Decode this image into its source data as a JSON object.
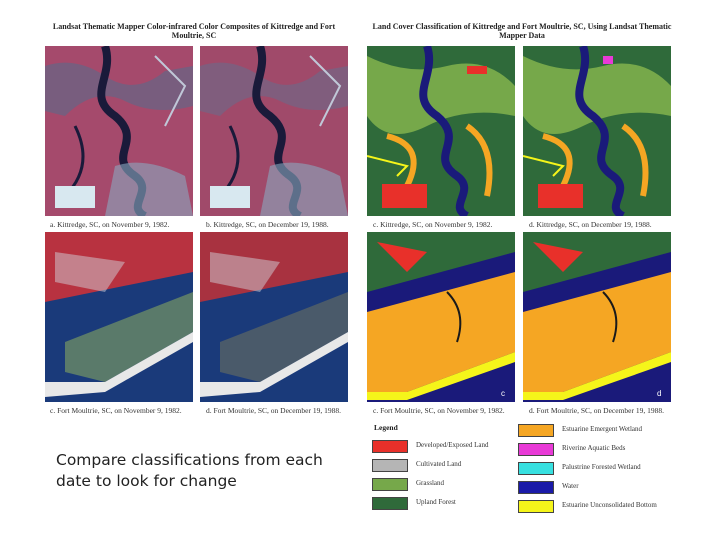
{
  "left_title": "Landsat Thematic Mapper Color-infrared Color Composites of Kittredge and Fort Moultrie, SC",
  "right_title": "Land Cover Classification of Kittredge and Fort Moultrie, SC, Using Landsat Thematic Mapper Data",
  "captions": {
    "a_top": "a. Kittredge, SC, on November 9, 1982.",
    "b_top": "b. Kittredge, SC, on December 19, 1988.",
    "c_top": "c. Kittredge, SC, on November 9, 1982.",
    "d_top": "d. Kittredge, SC, on December 19, 1988.",
    "c_bottom_left": "c. Fort Moultrie, SC, on November 9, 1982.",
    "d_bottom_left": "d. Fort Moultrie, SC, on December 19, 1988.",
    "c_bottom_right": "c. Fort Moultrie, SC, on November 9, 1982.",
    "d_bottom_right": "d. Fort Moultrie, SC, on December 19, 1988."
  },
  "panel_letters": {
    "c": "c",
    "d": "d"
  },
  "legend": {
    "title": "Legend",
    "left": [
      {
        "label": "Developed/Exposed Land",
        "color": "#e8302a"
      },
      {
        "label": "Cultivated Land",
        "color": "#b5b5b5"
      },
      {
        "label": "Grassland",
        "color": "#76a84a"
      },
      {
        "label": "Upland Forest",
        "color": "#2f6a3a"
      }
    ],
    "right": [
      {
        "label": "Estuarine Emergent Wetland",
        "color": "#f5a623"
      },
      {
        "label": "Riverine Aquatic Beds",
        "color": "#e83ad6"
      },
      {
        "label": "Palustrine Forested Wetland",
        "color": "#37e0e0"
      },
      {
        "label": "Water",
        "color": "#1a1aa8"
      },
      {
        "label": "Estuarine Unconsolidated Bottom",
        "color": "#f5f51a"
      }
    ]
  },
  "main_caption": "Compare classifications from each date to look for change"
}
